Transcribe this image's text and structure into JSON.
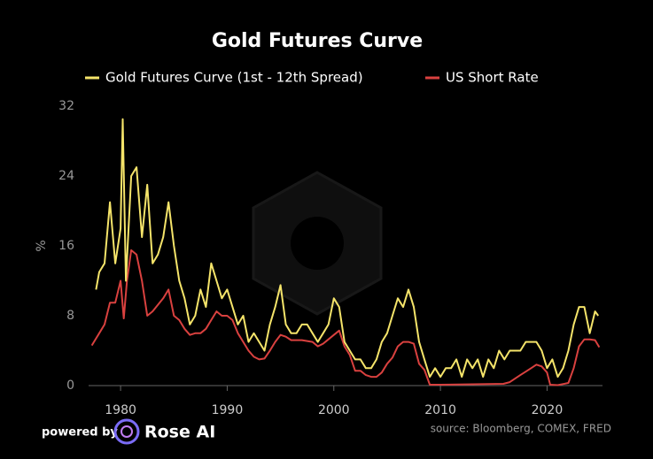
{
  "chart_data": {
    "type": "line",
    "title": "Gold Futures Curve",
    "ylabel": "%",
    "xlim": [
      1977,
      2025.2
    ],
    "xticks": [
      1980,
      1990,
      2000,
      2010,
      2020
    ],
    "ylim": [
      0,
      32
    ],
    "yticks": [
      0,
      8,
      16,
      24,
      32
    ],
    "grid": false,
    "legend": "top",
    "series": [
      {
        "name": "Gold Futures Curve (1st - 12th Spread)",
        "color": "#f5e46a",
        "x": [
          1977.7,
          1978,
          1978.5,
          1979,
          1979.5,
          1980,
          1980.2,
          1980.5,
          1981,
          1981.5,
          1982,
          1982.5,
          1983,
          1983.5,
          1984,
          1984.5,
          1985,
          1985.5,
          1986,
          1986.5,
          1987,
          1987.5,
          1988,
          1988.5,
          1989,
          1989.5,
          1990,
          1990.5,
          1991,
          1991.5,
          1992,
          1992.5,
          1993,
          1993.5,
          1994,
          1994.5,
          1995,
          1995.5,
          1996,
          1996.5,
          1997,
          1997.5,
          1998,
          1998.5,
          1999,
          1999.5,
          2000,
          2000.5,
          2001,
          2001.5,
          2002,
          2002.5,
          2003,
          2003.5,
          2004,
          2004.5,
          2005,
          2005.5,
          2006,
          2006.5,
          2007,
          2007.5,
          2008,
          2008.5,
          2009,
          2009.5,
          2010,
          2010.5,
          2011,
          2011.5,
          2012,
          2012.5,
          2013,
          2013.5,
          2014,
          2014.5,
          2015,
          2015.5,
          2016,
          2016.5,
          2017,
          2017.5,
          2018,
          2018.5,
          2019,
          2019.5,
          2020,
          2020.5,
          2021,
          2021.5,
          2022,
          2022.5,
          2023,
          2023.5,
          2024,
          2024.5,
          2024.8
        ],
        "values": [
          11,
          13,
          14,
          21,
          14,
          18,
          30.5,
          12,
          24,
          25,
          17,
          23,
          14,
          15,
          17,
          21,
          16,
          12,
          10,
          7,
          8,
          11,
          9,
          14,
          12,
          10,
          11,
          9,
          7,
          8,
          5,
          6,
          5,
          4,
          7,
          9,
          11.5,
          7,
          6,
          6,
          7,
          7,
          6,
          5,
          6,
          7,
          10,
          9,
          5,
          4,
          3,
          3,
          2,
          2,
          3,
          5,
          6,
          8,
          10,
          9,
          11,
          9,
          5,
          3,
          1,
          2,
          1,
          2,
          2,
          3,
          1,
          3,
          2,
          3,
          1,
          3,
          2,
          4,
          3,
          4,
          4,
          4,
          5,
          5,
          5,
          4,
          2,
          3,
          1,
          2,
          4,
          7,
          9,
          9,
          6,
          8.5,
          8
        ]
      },
      {
        "name": "US Short Rate",
        "color": "#d9413f",
        "x": [
          1977.3,
          1978,
          1978.5,
          1979,
          1979.5,
          1980,
          1980.3,
          1980.6,
          1981,
          1981.5,
          1982,
          1982.5,
          1983,
          1984,
          1984.5,
          1985,
          1985.5,
          1986,
          1986.5,
          1987,
          1987.5,
          1988,
          1988.5,
          1989,
          1989.5,
          1990,
          1990.5,
          1991,
          1991.5,
          1992,
          1992.5,
          1993,
          1993.5,
          1994,
          1994.5,
          1995,
          1995.5,
          1996,
          1997,
          1998,
          1998.5,
          1999,
          1999.5,
          2000,
          2000.5,
          2001,
          2001.5,
          2002,
          2002.5,
          2003,
          2003.5,
          2004,
          2004.5,
          2005,
          2005.5,
          2006,
          2006.5,
          2007,
          2007.5,
          2008,
          2008.5,
          2009,
          2010,
          2015.9,
          2016.5,
          2017,
          2017.5,
          2018,
          2018.5,
          2019,
          2019.5,
          2020,
          2020.3,
          2021,
          2022,
          2022.5,
          2023,
          2023.5,
          2024,
          2024.5,
          2024.9
        ],
        "values": [
          4.6,
          6,
          7,
          9.5,
          9.5,
          12,
          7.7,
          12,
          15.5,
          15,
          12,
          8,
          8.5,
          10,
          11,
          8,
          7.5,
          6.5,
          5.8,
          6,
          6,
          6.5,
          7.5,
          8.5,
          8,
          8,
          7.5,
          6,
          5,
          4,
          3.3,
          3,
          3.1,
          4,
          5,
          5.8,
          5.6,
          5.2,
          5.2,
          5,
          4.5,
          4.8,
          5.3,
          5.8,
          6.3,
          4.5,
          3.5,
          1.7,
          1.7,
          1.2,
          1,
          1,
          1.5,
          2.5,
          3.2,
          4.5,
          5,
          5,
          4.8,
          2.5,
          1.8,
          0.1,
          0.1,
          0.2,
          0.4,
          0.8,
          1.2,
          1.6,
          2,
          2.4,
          2.2,
          1.5,
          0.1,
          0.05,
          0.3,
          2,
          4.5,
          5.3,
          5.3,
          5.2,
          4.4
        ]
      }
    ],
    "footer": {
      "powered": "powered by",
      "brand": "Rose AI",
      "source": "source: Bloomberg, COMEX, FRED"
    }
  }
}
